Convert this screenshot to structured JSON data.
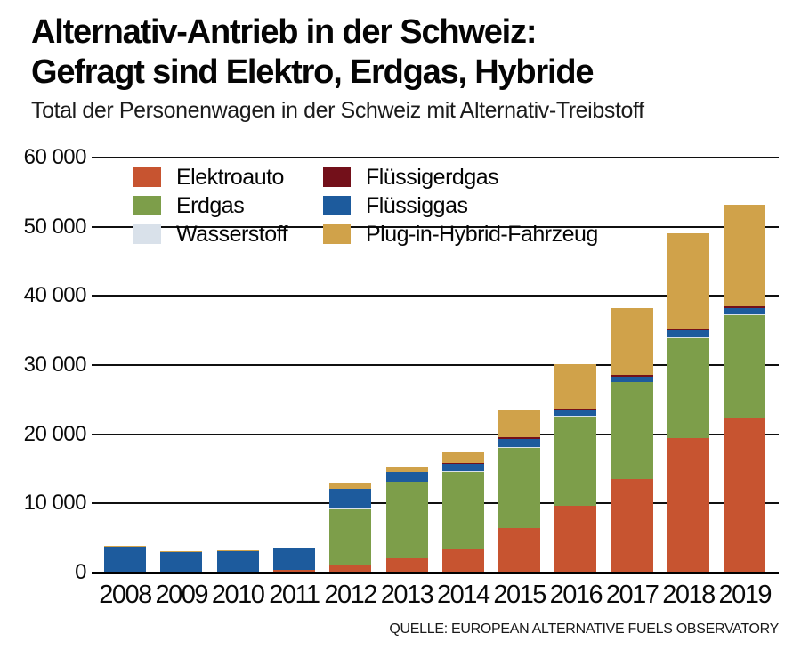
{
  "header": {
    "title_line1": "Alternativ-Antrieb in der Schweiz:",
    "title_line2": "Gefragt sind Elektro, Erdgas, Hybride",
    "subtitle": "Total der Personenwagen in der Schweiz mit Alternativ-Treibstoff"
  },
  "source": "QUELLE: EUROPEAN ALTERNATIVE FUELS OBSERVATORY",
  "chart_data": {
    "type": "bar",
    "stacked": true,
    "title": "Alternativ-Antrieb in der Schweiz: Gefragt sind Elektro, Erdgas, Hybride",
    "subtitle": "Total der Personenwagen in der Schweiz mit Alternativ-Treibstoff",
    "categories": [
      "2008",
      "2009",
      "2010",
      "2011",
      "2012",
      "2013",
      "2014",
      "2015",
      "2016",
      "2017",
      "2018",
      "2019"
    ],
    "series": [
      {
        "name": "Elektroauto",
        "color": "#c75430",
        "values": [
          0,
          0,
          0,
          350,
          1000,
          2100,
          3400,
          6400,
          9700,
          13500,
          19400,
          22400
        ]
      },
      {
        "name": "Erdgas",
        "color": "#7d9e4a",
        "values": [
          0,
          0,
          0,
          0,
          8200,
          11000,
          11100,
          11600,
          12800,
          14000,
          14500,
          14800
        ]
      },
      {
        "name": "Wasserstoff",
        "color": "#d9e1ea",
        "values": [
          0,
          0,
          0,
          0,
          50,
          100,
          150,
          150,
          150,
          100,
          150,
          150
        ]
      },
      {
        "name": "Flüssiggas",
        "color": "#1d5b9d",
        "values": [
          3700,
          2950,
          3150,
          3100,
          2800,
          1300,
          1000,
          1200,
          800,
          700,
          1000,
          850
        ]
      },
      {
        "name": "Flüssigerdgas",
        "color": "#73101a",
        "values": [
          0,
          0,
          0,
          0,
          50,
          100,
          250,
          200,
          200,
          300,
          250,
          300
        ]
      },
      {
        "name": "Plug-in-Hybrid-Fahrzeug",
        "color": "#d0a24a",
        "values": [
          150,
          100,
          100,
          150,
          750,
          650,
          1500,
          3850,
          6450,
          9600,
          13700,
          14700
        ]
      }
    ],
    "legend": {
      "position": "top-left-inside",
      "column1": [
        "Elektroauto",
        "Erdgas",
        "Wasserstoff"
      ],
      "column2": [
        "Flüssigerdgas",
        "Flüssiggas",
        "Plug-in-Hybrid-Fahrzeug"
      ]
    },
    "ylim": [
      0,
      60000
    ],
    "ytick_interval": 10000,
    "ytick_labels": [
      "0",
      "10 000",
      "20 000",
      "30 000",
      "40 000",
      "50 000",
      "60 000"
    ],
    "xlabel": "",
    "ylabel": "",
    "grid": "horizontal"
  }
}
